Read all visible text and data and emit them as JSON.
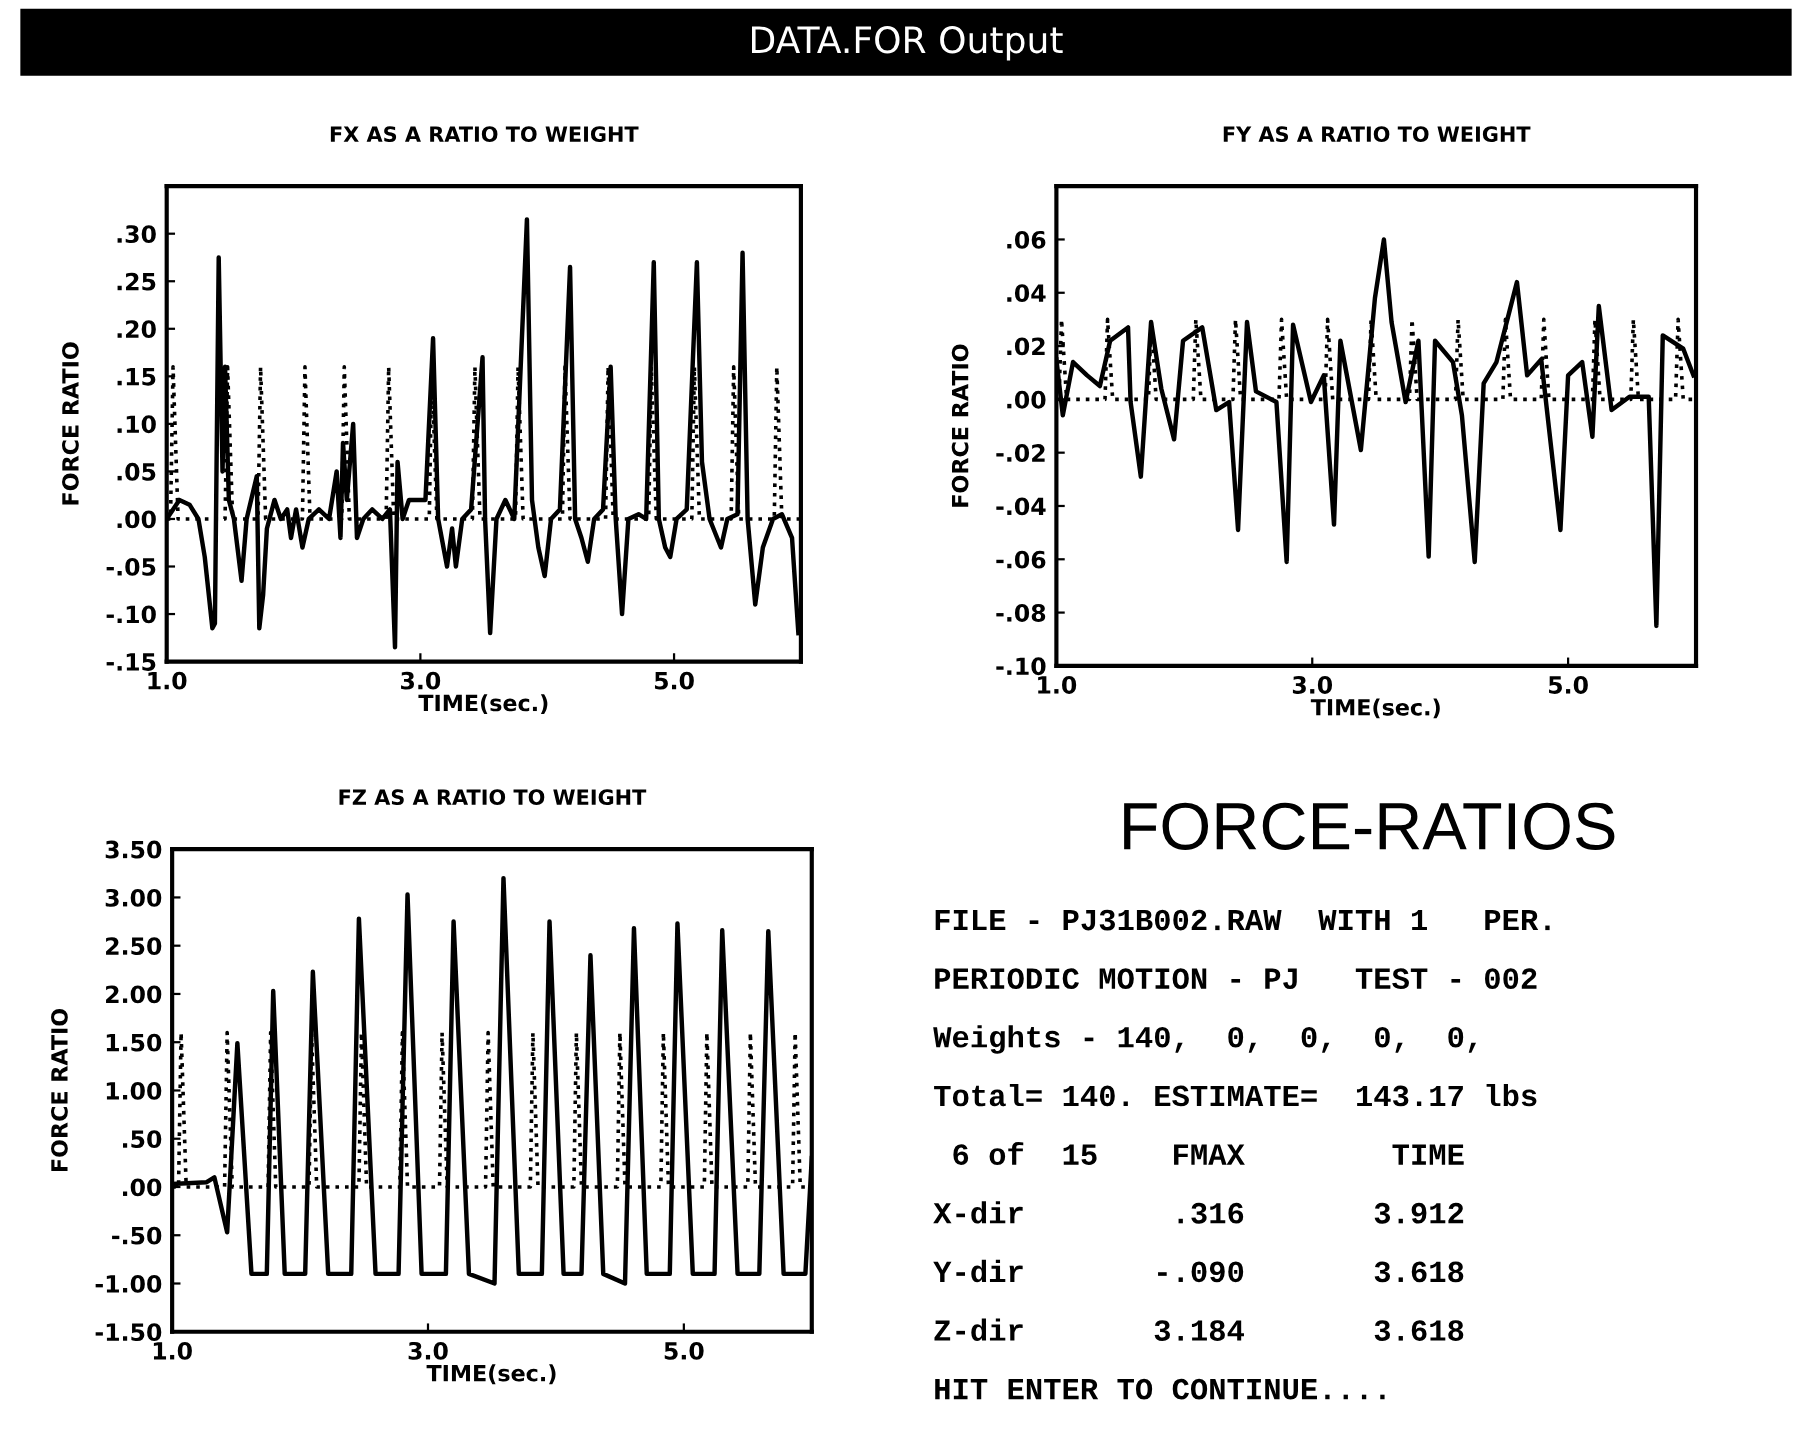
{
  "chart_data": [
    {
      "type": "line",
      "title": "FX AS A RATIO TO WEIGHT",
      "xlabel": "TIME(sec.)",
      "ylabel": "FORCE RATIO",
      "xlim": [
        1.0,
        6.0
      ],
      "xticks": [
        {
          "value": 1.0,
          "label": "1.0"
        },
        {
          "value": 3.0,
          "label": "3.0"
        },
        {
          "value": 5.0,
          "label": "5.0"
        }
      ],
      "ylim": [
        -0.15,
        0.35
      ],
      "yticks": [
        {
          "value": -0.15,
          "label": "-.15"
        },
        {
          "value": -0.1,
          "label": "-.10"
        },
        {
          "value": -0.05,
          "label": "-.05"
        },
        {
          "value": 0,
          "label": ".00"
        },
        {
          "value": 0.05,
          "label": ".05"
        },
        {
          "value": 0.1,
          "label": ".10"
        },
        {
          "value": 0.15,
          "label": ".15"
        },
        {
          "value": 0.2,
          "label": ".20"
        },
        {
          "value": 0.25,
          "label": ".25"
        },
        {
          "value": 0.3,
          "label": ".30"
        }
      ],
      "series": [
        {
          "color": "#000000",
          "line_style": "dotted",
          "x": [
            1.0,
            1.03,
            1.05,
            1.09,
            1.46,
            1.48,
            1.52,
            1.72,
            1.74,
            1.78,
            2.07,
            2.09,
            2.13,
            2.38,
            2.4,
            2.44,
            2.73,
            2.75,
            2.79,
            3.07,
            3.09,
            3.13,
            3.41,
            3.43,
            3.47,
            3.75,
            3.77,
            3.81,
            4.12,
            4.14,
            4.18,
            4.46,
            4.48,
            4.52,
            4.8,
            4.82,
            4.86,
            5.14,
            5.16,
            5.2,
            5.45,
            5.47,
            5.51,
            5.79,
            5.81,
            5.85,
            6.0
          ],
          "values": [
            0,
            0,
            0.16,
            0,
            0,
            0.16,
            0,
            0,
            0.16,
            0,
            0,
            0.16,
            0,
            0,
            0.16,
            0,
            0,
            0.16,
            0,
            0,
            0.16,
            0,
            0,
            0.16,
            0,
            0,
            0.16,
            0,
            0,
            0.16,
            0,
            0,
            0.16,
            0,
            0,
            0.16,
            0,
            0,
            0.16,
            0,
            0,
            0.16,
            0,
            0,
            0.16,
            0,
            0
          ]
        },
        {
          "color": "#000000",
          "line_style": "solid",
          "x": [
            1.0,
            1.05,
            1.1,
            1.18,
            1.25,
            1.3,
            1.36,
            1.38,
            1.41,
            1.44,
            1.46,
            1.49,
            1.53,
            1.59,
            1.63,
            1.71,
            1.73,
            1.76,
            1.79,
            1.85,
            1.9,
            1.95,
            1.98,
            2.02,
            2.07,
            2.12,
            2.2,
            2.28,
            2.34,
            2.37,
            2.39,
            2.42,
            2.47,
            2.5,
            2.55,
            2.62,
            2.7,
            2.76,
            2.8,
            2.82,
            2.86,
            2.91,
            3.04,
            3.1,
            3.14,
            3.21,
            3.25,
            3.28,
            3.33,
            3.4,
            3.49,
            3.51,
            3.55,
            3.6,
            3.67,
            3.74,
            3.84,
            3.88,
            3.93,
            3.98,
            4.03,
            4.1,
            4.18,
            4.22,
            4.27,
            4.32,
            4.37,
            4.44,
            4.5,
            4.54,
            4.59,
            4.64,
            4.72,
            4.78,
            4.84,
            4.88,
            4.93,
            4.97,
            5.02,
            5.1,
            5.18,
            5.22,
            5.28,
            5.37,
            5.42,
            5.5,
            5.54,
            5.58,
            5.64,
            5.7,
            5.78,
            5.85,
            5.93,
            5.98
          ],
          "values": [
            0,
            0.01,
            0.02,
            0.015,
            0,
            -0.04,
            -0.115,
            -0.11,
            0.275,
            0.05,
            0.16,
            0.02,
            0,
            -0.065,
            0,
            0.045,
            -0.115,
            -0.08,
            -0.01,
            0.02,
            0,
            0.01,
            -0.02,
            0.01,
            -0.03,
            0,
            0.01,
            0,
            0.05,
            -0.02,
            0.08,
            0.02,
            0.1,
            -0.02,
            0,
            0.01,
            0,
            0.01,
            -0.135,
            0.06,
            0,
            0.02,
            0.02,
            0.19,
            0,
            -0.05,
            -0.01,
            -0.05,
            0,
            0.01,
            0.17,
            0,
            -0.12,
            0,
            0.02,
            0,
            0.315,
            0.02,
            -0.03,
            -0.06,
            0,
            0.01,
            0.265,
            0,
            -0.02,
            -0.045,
            0,
            0.01,
            0.16,
            0,
            -0.1,
            0,
            0.005,
            0,
            0.27,
            0,
            -0.03,
            -0.04,
            0,
            0.01,
            0.27,
            0.06,
            0,
            -0.03,
            0,
            0.005,
            0.28,
            0,
            -0.09,
            -0.03,
            0,
            0.005,
            -0.02,
            -0.12
          ]
        }
      ]
    },
    {
      "type": "line",
      "title": "FY AS A RATIO TO WEIGHT",
      "xlabel": "TIME(sec.)",
      "ylabel": "FORCE RATIO",
      "xlim": [
        1.0,
        6.0
      ],
      "xticks": [
        {
          "value": 1.0,
          "label": "1.0"
        },
        {
          "value": 3.0,
          "label": "3.0"
        },
        {
          "value": 5.0,
          "label": "5.0"
        }
      ],
      "ylim": [
        -0.1,
        0.08
      ],
      "yticks": [
        {
          "value": -0.1,
          "label": "-.10"
        },
        {
          "value": -0.08,
          "label": "-.08"
        },
        {
          "value": -0.06,
          "label": "-.06"
        },
        {
          "value": -0.04,
          "label": "-.04"
        },
        {
          "value": -0.02,
          "label": "-.02"
        },
        {
          "value": 0,
          "label": ".00"
        },
        {
          "value": 0.02,
          "label": ".02"
        },
        {
          "value": 0.04,
          "label": ".04"
        },
        {
          "value": 0.06,
          "label": ".06"
        }
      ],
      "series": [
        {
          "color": "#000000",
          "line_style": "dotted",
          "x": [
            1.0,
            1.02,
            1.04,
            1.08,
            1.38,
            1.4,
            1.44,
            1.72,
            1.74,
            1.78,
            2.07,
            2.09,
            2.13,
            2.38,
            2.4,
            2.44,
            2.74,
            2.76,
            2.8,
            3.1,
            3.12,
            3.16,
            3.44,
            3.46,
            3.5,
            3.76,
            3.78,
            3.82,
            4.12,
            4.14,
            4.18,
            4.49,
            4.51,
            4.55,
            4.79,
            4.81,
            4.85,
            5.19,
            5.21,
            5.25,
            5.49,
            5.51,
            5.55,
            5.84,
            5.86,
            5.9,
            6.0
          ],
          "values": [
            0,
            0,
            0.03,
            0,
            0,
            0.03,
            0,
            0,
            0.03,
            0,
            0,
            0.03,
            0,
            0,
            0.03,
            0,
            0,
            0.03,
            0,
            0,
            0.03,
            0,
            0,
            0.03,
            0,
            0,
            0.03,
            0,
            0,
            0.03,
            0,
            0,
            0.03,
            0,
            0,
            0.03,
            0,
            0,
            0.03,
            0,
            0,
            0.03,
            0,
            0,
            0.03,
            0,
            0
          ]
        },
        {
          "color": "#000000",
          "line_style": "solid",
          "x": [
            1.0,
            1.05,
            1.13,
            1.24,
            1.34,
            1.42,
            1.56,
            1.58,
            1.66,
            1.74,
            1.82,
            1.92,
            1.99,
            2.14,
            2.25,
            2.35,
            2.42,
            2.49,
            2.56,
            2.72,
            2.8,
            2.85,
            2.99,
            3.09,
            3.17,
            3.22,
            3.38,
            3.49,
            3.56,
            3.62,
            3.73,
            3.83,
            3.91,
            3.96,
            4.1,
            4.17,
            4.27,
            4.34,
            4.44,
            4.6,
            4.68,
            4.79,
            4.94,
            5.0,
            5.11,
            5.19,
            5.24,
            5.34,
            5.48,
            5.63,
            5.69,
            5.74,
            5.9,
            5.98
          ],
          "values": [
            0.015,
            -0.006,
            0.014,
            0.009,
            0.005,
            0.022,
            0.027,
            -0.001,
            -0.029,
            0.029,
            0.004,
            -0.015,
            0.022,
            0.027,
            -0.004,
            -0.001,
            -0.049,
            0.029,
            0.003,
            -0.001,
            -0.061,
            0.028,
            -0.001,
            0.009,
            -0.047,
            0.022,
            -0.019,
            0.038,
            0.06,
            0.029,
            -0.001,
            0.022,
            -0.059,
            0.022,
            0.014,
            -0.006,
            -0.061,
            0.006,
            0.014,
            0.044,
            0.009,
            0.015,
            -0.049,
            0.009,
            0.014,
            -0.014,
            0.035,
            -0.004,
            0.001,
            0.001,
            -0.085,
            0.024,
            0.019,
            0.009
          ]
        }
      ]
    },
    {
      "type": "line",
      "title": "FZ AS A RATIO TO WEIGHT",
      "xlabel": "TIME(sec.)",
      "ylabel": "FORCE RATIO",
      "xlim": [
        1.0,
        6.0
      ],
      "xticks": [
        {
          "value": 1.0,
          "label": "1.0"
        },
        {
          "value": 3.0,
          "label": "3.0"
        },
        {
          "value": 5.0,
          "label": "5.0"
        }
      ],
      "ylim": [
        -1.5,
        3.5
      ],
      "yticks": [
        {
          "value": -1.5,
          "label": "-1.50"
        },
        {
          "value": -1.0,
          "label": "-1.00"
        },
        {
          "value": -0.5,
          "label": "-.50"
        },
        {
          "value": 0,
          "label": ".00"
        },
        {
          "value": 0.5,
          "label": ".50"
        },
        {
          "value": 1.0,
          "label": "1.00"
        },
        {
          "value": 1.5,
          "label": "1.50"
        },
        {
          "value": 2.0,
          "label": "2.00"
        },
        {
          "value": 2.5,
          "label": "2.50"
        },
        {
          "value": 3.0,
          "label": "3.00"
        },
        {
          "value": 3.5,
          "label": "3.50"
        }
      ],
      "series": [
        {
          "color": "#000000",
          "line_style": "dotted",
          "x": [
            1.0,
            1.05,
            1.07,
            1.11,
            1.41,
            1.43,
            1.47,
            1.75,
            1.77,
            1.81,
            2.07,
            2.09,
            2.13,
            2.46,
            2.48,
            2.52,
            2.78,
            2.8,
            2.84,
            3.09,
            3.11,
            3.15,
            3.45,
            3.47,
            3.51,
            3.8,
            3.82,
            3.86,
            4.14,
            4.16,
            4.2,
            4.48,
            4.5,
            4.54,
            4.82,
            4.84,
            4.88,
            5.16,
            5.18,
            5.22,
            5.5,
            5.52,
            5.56,
            5.85,
            5.87,
            5.91,
            6.0
          ],
          "values": [
            0,
            0,
            1.6,
            0,
            0,
            1.6,
            0,
            0,
            1.6,
            0,
            0,
            1.6,
            0,
            0,
            1.6,
            0,
            0,
            1.6,
            0,
            0,
            1.6,
            0,
            0,
            1.6,
            0,
            0,
            1.6,
            0,
            0,
            1.6,
            0,
            0,
            1.6,
            0,
            0,
            1.6,
            0,
            0,
            1.6,
            0,
            0,
            1.6,
            0,
            0,
            1.6,
            0,
            0
          ]
        },
        {
          "color": "#000000",
          "line_style": "solid",
          "x": [
            1.0,
            1.27,
            1.33,
            1.43,
            1.51,
            1.62,
            1.74,
            1.79,
            1.88,
            2.04,
            2.1,
            2.22,
            2.4,
            2.46,
            2.59,
            2.77,
            2.84,
            2.95,
            3.14,
            3.2,
            3.32,
            3.52,
            3.59,
            3.71,
            3.89,
            3.95,
            4.06,
            4.2,
            4.27,
            4.37,
            4.54,
            4.61,
            4.71,
            4.89,
            4.95,
            5.07,
            5.24,
            5.3,
            5.42,
            5.59,
            5.66,
            5.78,
            5.95,
            6.0
          ],
          "values": [
            0.03,
            0.05,
            0.1,
            -0.47,
            1.49,
            -0.9,
            -0.9,
            2.03,
            -0.9,
            -0.9,
            2.23,
            -0.9,
            -0.9,
            2.78,
            -0.9,
            -0.9,
            3.03,
            -0.9,
            -0.9,
            2.75,
            -0.9,
            -1.0,
            3.2,
            -0.9,
            -0.9,
            2.75,
            -0.9,
            -0.9,
            2.4,
            -0.9,
            -1.0,
            2.68,
            -0.9,
            -0.9,
            2.73,
            -0.9,
            -0.9,
            2.66,
            -0.9,
            -0.9,
            2.65,
            -0.9,
            -0.9,
            0.3
          ]
        }
      ]
    },
    {
      "type": "other",
      "subtitle": "DATA.FOR Output",
      "title": "FORCE-RATIOS",
      "annotations": [
        "FILE - PJ31B002.RAW  WITH 1   PER.",
        "PERIODIC MOTION - PJ   TEST - 002",
        "Weights - 140,  0,  0,  0,  0,",
        "Total= 140. ESTIMATE=  143.17 lbs",
        " 6 of  15    FMAX        TIME",
        "X-dir        .316       3.912",
        "Y-dir       -.090       3.618",
        "Z-dir       3.184       3.618",
        "HIT ENTER TO CONTINUE...."
      ]
    }
  ]
}
